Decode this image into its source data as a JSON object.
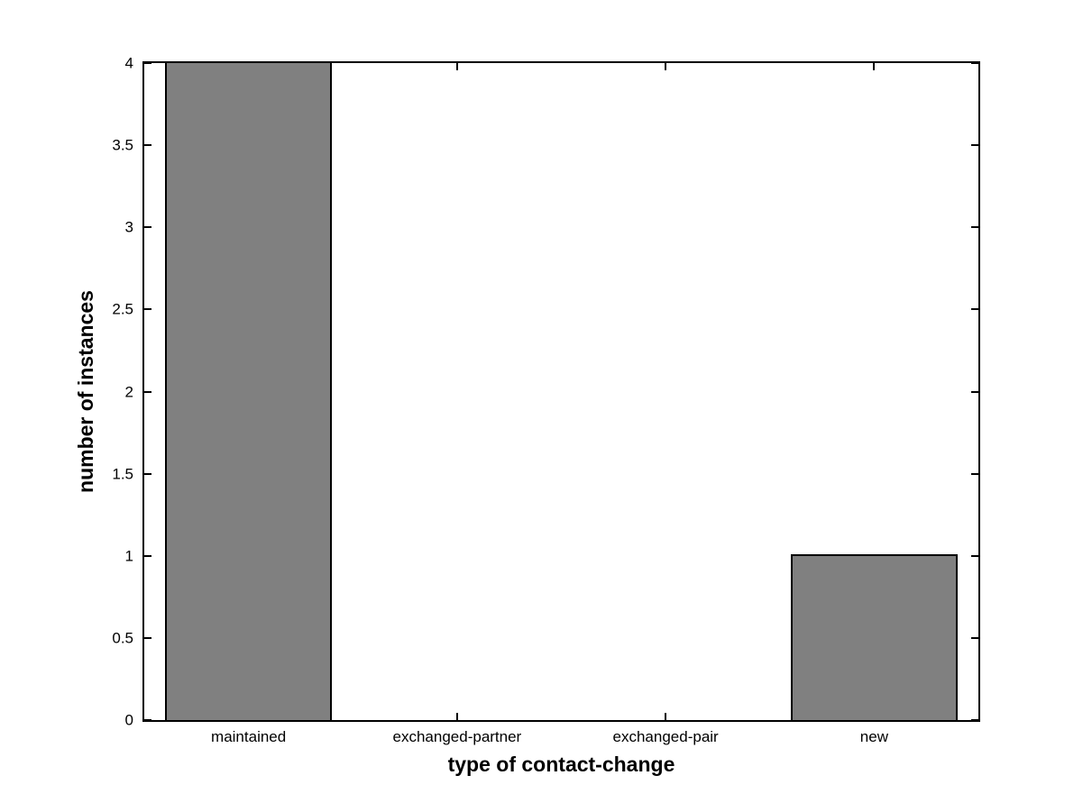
{
  "chart_data": {
    "type": "bar",
    "title": "",
    "categories": [
      "maintained",
      "exchanged-partner",
      "exchanged-pair",
      "new"
    ],
    "values": [
      4,
      0,
      0,
      1
    ],
    "xlabel": "type of contact-change",
    "ylabel": "number of instances",
    "ylim": [
      0,
      4
    ],
    "ytick_labels": [
      "0",
      "0.5",
      "1",
      "1.5",
      "2",
      "2.5",
      "3",
      "3.5",
      "4"
    ],
    "bar_width_fraction": 0.8,
    "bar_color": "#808080",
    "bar_edge_color": "#000000",
    "axis_color": "#000000",
    "background_color": "#ffffff",
    "grid": false,
    "legend": null,
    "tick_direction": "in",
    "box": true
  }
}
